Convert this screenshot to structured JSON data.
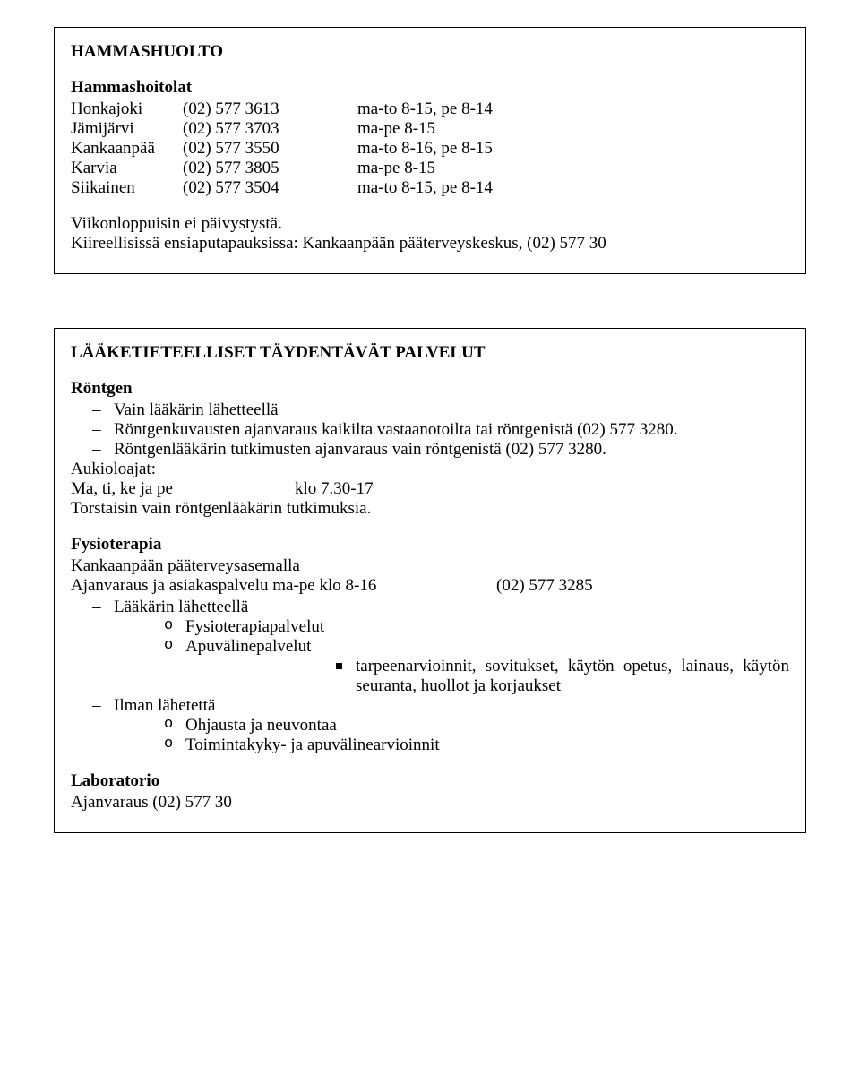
{
  "box1": {
    "title": "HAMMASHUOLTO",
    "subtitle": "Hammashoitolat",
    "rows": [
      {
        "name": "Honkajoki",
        "phone": "(02) 577 3613",
        "hours": "ma-to 8-15, pe 8-14"
      },
      {
        "name": "Jämijärvi",
        "phone": "(02) 577 3703",
        "hours": "ma-pe 8-15"
      },
      {
        "name": "Kankaanpää",
        "phone": "(02) 577 3550",
        "hours": "ma-to 8-16, pe 8-15"
      },
      {
        "name": "Karvia",
        "phone": "(02) 577 3805",
        "hours": "ma-pe 8-15"
      },
      {
        "name": "Siikainen",
        "phone": "(02) 577 3504",
        "hours": "ma-to 8-15, pe 8-14"
      }
    ],
    "note1": "Viikonloppuisin ei päivystystä.",
    "note2": "Kiireellisissä ensiaputapauksissa: Kankaanpään pääterveyskeskus, (02) 577 30"
  },
  "box2": {
    "title": "LÄÄKETIETEELLISET TÄYDENTÄVÄT PALVELUT",
    "rontgen": {
      "heading": "Röntgen",
      "i1": "Vain lääkärin lähetteellä",
      "i2": "Röntgenkuvausten ajanvaraus kaikilta vastaanotoilta tai röntgenistä (02) 577 3280.",
      "i3": "Röntgenlääkärin tutkimusten ajanvaraus vain röntgenistä (02) 577 3280.",
      "openLabel": "Aukioloajat:",
      "openDays": "Ma, ti, ke ja pe",
      "openHours": "klo 7.30-17",
      "note": "Torstaisin vain röntgenlääkärin tutkimuksia."
    },
    "physio": {
      "heading": "Fysioterapia",
      "loc": "Kankaanpään pääterveysasemalla",
      "bookLabel": "Ajanvaraus ja asiakaspalvelu ma-pe klo 8-16",
      "bookPhone": "(02) 577 3285",
      "d1": "Lääkärin lähetteellä",
      "d1c1": "Fysioterapiapalvelut",
      "d1c2": "Apuvälinepalvelut",
      "d1c2s1": "tarpeenarvioinnit, sovitukset, käytön opetus, lainaus, käytön seuranta, huollot ja korjaukset",
      "d2": "Ilman lähetettä",
      "d2c1": "Ohjausta ja neuvontaa",
      "d2c2": "Toimintakyky- ja apuvälinearvioinnit"
    },
    "lab": {
      "heading": "Laboratorio",
      "line": "Ajanvaraus (02) 577 30"
    }
  }
}
